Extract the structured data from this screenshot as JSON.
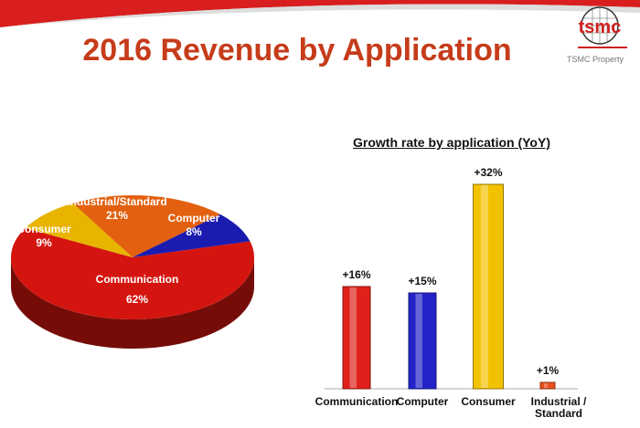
{
  "title": "2016 Revenue by Application",
  "logo_text": "tsmc",
  "property_label": "TSMC Property",
  "chart_data": [
    {
      "type": "pie",
      "slices": [
        {
          "label": "Communication",
          "value": 62,
          "value_label": "62%",
          "color": "#d4150f"
        },
        {
          "label": "Consumer",
          "value": 9,
          "value_label": "9%",
          "color": "#e8b400"
        },
        {
          "label": "Industrial/Standard",
          "value": 21,
          "value_label": "21%",
          "color": "#e2600f"
        },
        {
          "label": "Computer",
          "value": 8,
          "value_label": "8%",
          "color": "#1b1bb0"
        }
      ]
    },
    {
      "type": "bar",
      "title": "Growth rate by application (YoY)",
      "categories": [
        "Communication",
        "Computer",
        "Consumer",
        "Industrial / Standard"
      ],
      "values": [
        16,
        15,
        32,
        1
      ],
      "data_labels": [
        "+16%",
        "+15%",
        "+32%",
        "+1%"
      ],
      "colors": [
        "#e0201a",
        "#2323c8",
        "#f2c200",
        "#e8501a"
      ],
      "unit": "%"
    }
  ]
}
